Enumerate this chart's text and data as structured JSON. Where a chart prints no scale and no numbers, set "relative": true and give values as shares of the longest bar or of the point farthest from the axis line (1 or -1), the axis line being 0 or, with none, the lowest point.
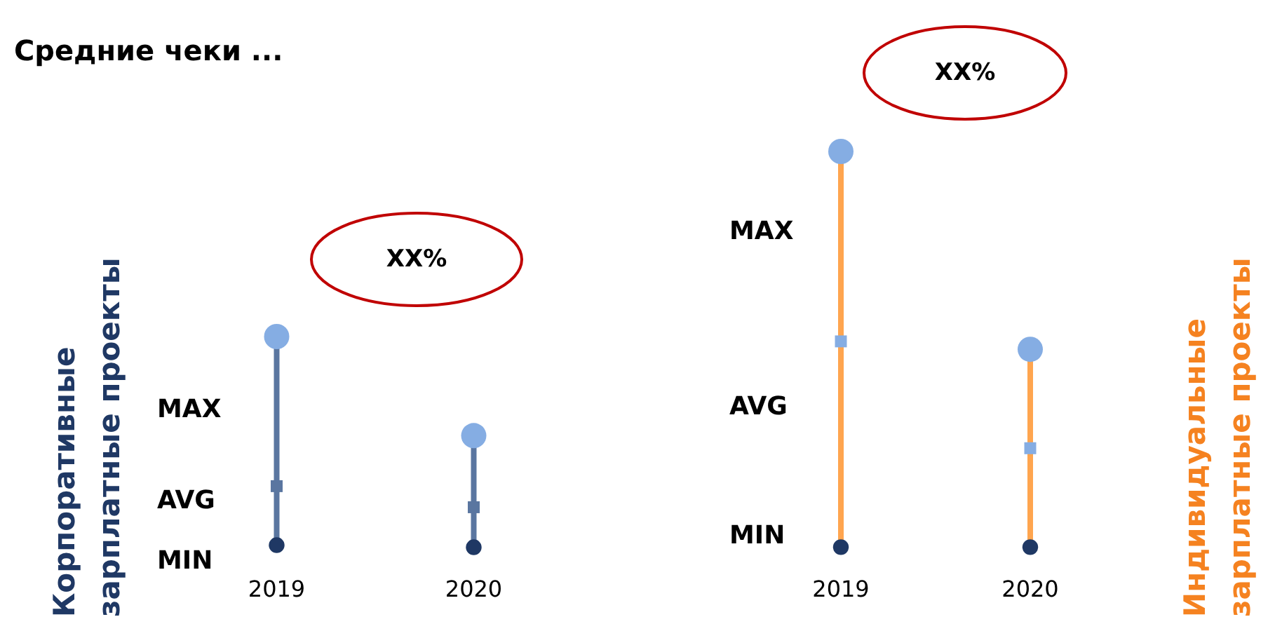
{
  "chart_data": [
    {
      "type": "scatter",
      "title": "Средние чеки ...",
      "ylabel": "Корпоративные зарплатные проекты",
      "categories": [
        "2019",
        "2020"
      ],
      "relative": true,
      "color": "#5a76a0",
      "annotations": [
        "XX%"
      ],
      "series": [
        {
          "name": "MAX",
          "color": "#85ade3",
          "marker": "circle",
          "values": [
            1,
            0.53
          ]
        },
        {
          "name": "AVG",
          "color": "#5a76a0",
          "marker": "square",
          "values": [
            0.29,
            0.19
          ]
        },
        {
          "name": "MIN",
          "color": "#1f3864",
          "marker": "circle",
          "values": [
            0.01,
            0
          ]
        }
      ]
    },
    {
      "type": "scatter",
      "y2label": "Индивидуальные зарплатные проекты",
      "categories": [
        "2019",
        "2020"
      ],
      "relative": true,
      "color": "#ffa54f",
      "annotations": [
        "XX%"
      ],
      "series": [
        {
          "name": "MAX",
          "color": "#85ade3",
          "marker": "circle",
          "values": [
            1,
            0.5
          ]
        },
        {
          "name": "AVG",
          "color": "#85ade3",
          "marker": "square",
          "values": [
            0.52,
            0.25
          ]
        },
        {
          "name": "MIN",
          "color": "#1f3864",
          "marker": "circle",
          "values": [
            0,
            0
          ]
        }
      ]
    }
  ]
}
